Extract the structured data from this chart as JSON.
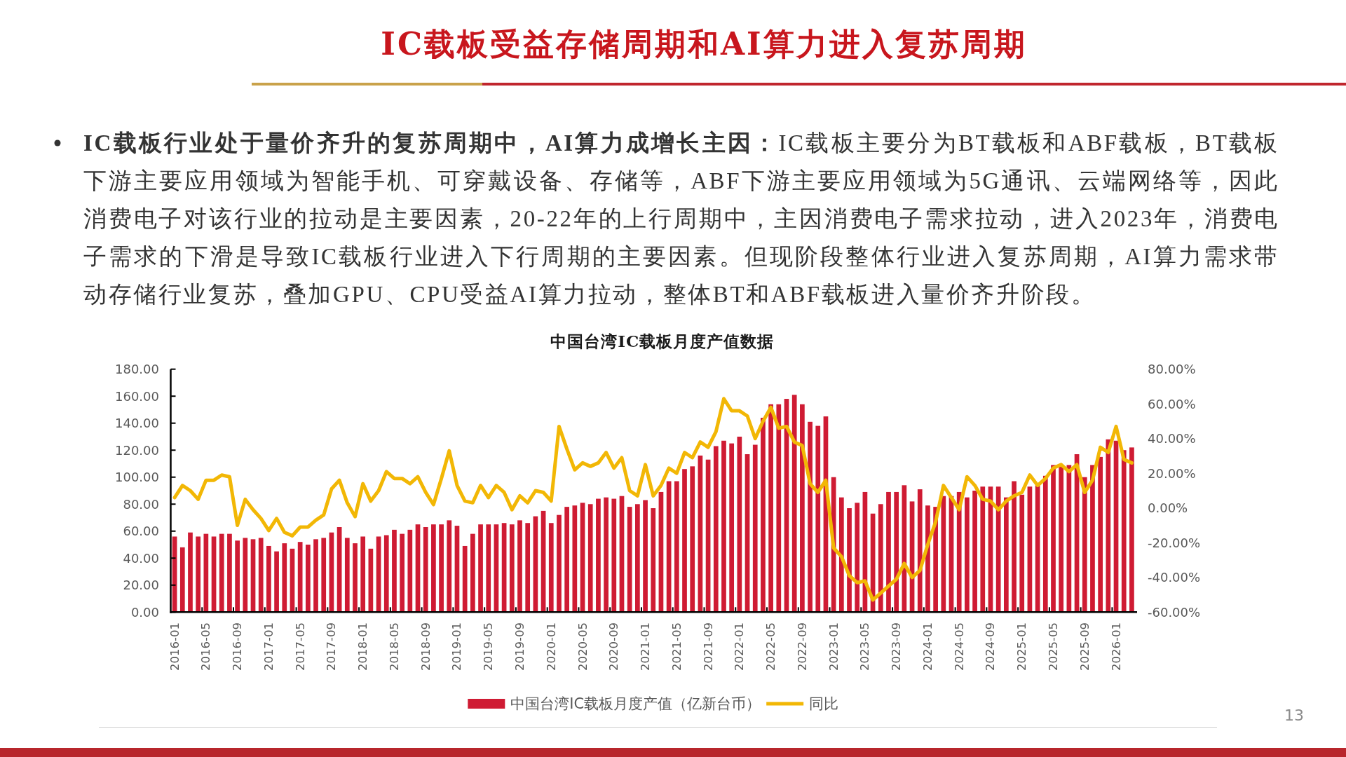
{
  "chart_data": {
    "type": "bar",
    "title": "IC载板受益存储周期和AI算力进入复苏周期",
    "subtitle": "中国台湾IC载板月度产值数据",
    "annotations": [
      "IC载板行业处于量价齐升的复苏周期中，AI算力成增长主因：",
      "IC载板主要分为BT载板和ABF载板，BT载板下游主要应用领域为智能手机、可穿戴设备、存储等，ABF下游主要应用领域为5G通讯、云端网络等，因此消费电子对该行业的拉动是主要因素，20-22年的上行周期中，主因消费电子需求拉动，进入2023年，消费电子需求的下滑是导致IC载板行业进入下行周期的主要因素。但现阶段整体行业进入复苏周期，AI算力需求带动存储行业复苏，叠加GPU、CPU受益AI算力拉动，整体BT和ABF载板进入量价齐升阶段。",
      "13"
    ],
    "categories": [
      "2016-01",
      null,
      null,
      null,
      "2016-05",
      null,
      null,
      null,
      "2016-09",
      null,
      null,
      null,
      "2017-01",
      null,
      null,
      null,
      "2017-05",
      null,
      null,
      null,
      "2017-09",
      null,
      null,
      null,
      "2018-01",
      null,
      null,
      null,
      "2018-05",
      null,
      null,
      null,
      "2018-09",
      null,
      null,
      null,
      "2019-01",
      null,
      null,
      null,
      "2019-05",
      null,
      null,
      null,
      "2019-09",
      null,
      null,
      null,
      "2020-01",
      null,
      null,
      null,
      "2020-05",
      null,
      null,
      null,
      "2020-09",
      null,
      null,
      null,
      "2021-01",
      null,
      null,
      null,
      "2021-05",
      null,
      null,
      null,
      "2021-09",
      null,
      null,
      null,
      "2022-01",
      null,
      null,
      null,
      "2022-05",
      null,
      null,
      null,
      "2022-09",
      null,
      null,
      null,
      "2023-01",
      null,
      null,
      null,
      "2023-05",
      null,
      null,
      null,
      "2023-09",
      null,
      null,
      null,
      "2024-01",
      null,
      null,
      null,
      "2024-05",
      null,
      null,
      null,
      "2024-09",
      null,
      null,
      null,
      "2025-01",
      null,
      null,
      null,
      "2025-05",
      null,
      null,
      null,
      "2025-09",
      null,
      null,
      null,
      "2026-01",
      null,
      null
    ],
    "series": [
      {
        "name": "中国台湾IC载板月度产值（亿新台币）",
        "color": "#cf1b33",
        "values": [
          56,
          48,
          59,
          56,
          58,
          56,
          58,
          58,
          53,
          55,
          54,
          55,
          49,
          45,
          51,
          47,
          52,
          50,
          54,
          55,
          59,
          63,
          55,
          51,
          56,
          47,
          56,
          57,
          61,
          58,
          61,
          65,
          63,
          65,
          65,
          68,
          64,
          49,
          58,
          65,
          65,
          65,
          66,
          65,
          68,
          66,
          71,
          75,
          66,
          72,
          78,
          79,
          81,
          80,
          84,
          85,
          84,
          86,
          78,
          80,
          83,
          77,
          89,
          97,
          97,
          106,
          108,
          116,
          113,
          123,
          127,
          125,
          130,
          117,
          124,
          144,
          154,
          154,
          158,
          161,
          154,
          141,
          138,
          145,
          100,
          85,
          77,
          81,
          89,
          73,
          80,
          89,
          89,
          94,
          82,
          91,
          79,
          78,
          86,
          86,
          89,
          85,
          90,
          93,
          93,
          93,
          85,
          97,
          87,
          93,
          94,
          101,
          109,
          109,
          109,
          117,
          100,
          109,
          115,
          128,
          127,
          120,
          122
        ]
      },
      {
        "name": "同比",
        "type": "line",
        "axis": "y2",
        "color": "#f2b705",
        "values": [
          6,
          13,
          10,
          5,
          16,
          16,
          19,
          18,
          -10,
          5,
          -1,
          -6,
          -13,
          -6,
          -14,
          -16,
          -11,
          -11,
          -7,
          -4,
          11,
          16,
          3,
          -5,
          14,
          4,
          10,
          21,
          17,
          17,
          14,
          18,
          9,
          2,
          17,
          33,
          13,
          4,
          3,
          13,
          6,
          13,
          9,
          -1,
          7,
          3,
          10,
          9,
          4,
          47,
          34,
          22,
          26,
          24,
          26,
          32,
          23,
          29,
          10,
          7,
          25,
          7,
          13,
          23,
          20,
          32,
          29,
          38,
          35,
          44,
          63,
          56,
          56,
          53,
          40,
          50,
          58,
          46,
          47,
          38,
          36,
          14,
          9,
          16,
          -23,
          -28,
          -39,
          -43,
          -42,
          -53,
          -49,
          -45,
          -41,
          -32,
          -40,
          -36,
          -21,
          -8,
          13,
          6,
          -1,
          18,
          13,
          5,
          4,
          -1,
          4,
          7,
          9,
          19,
          13,
          17,
          23,
          25,
          21,
          25,
          9,
          16,
          35,
          32,
          47,
          28,
          26
        ]
      }
    ],
    "ylim": [
      0,
      180
    ],
    "yticks": [
      {
        "value": 0,
        "label": "0.00"
      },
      {
        "value": 20,
        "label": "20.00"
      },
      {
        "value": 40,
        "label": "40.00"
      },
      {
        "value": 60,
        "label": "60.00"
      },
      {
        "value": 80,
        "label": "80.00"
      },
      {
        "value": 100,
        "label": "100.00"
      },
      {
        "value": 120,
        "label": "120.00"
      },
      {
        "value": 140,
        "label": "140.00"
      },
      {
        "value": 160,
        "label": "160.00"
      },
      {
        "value": 180,
        "label": "180.00"
      }
    ],
    "y2lim": [
      -60,
      80
    ],
    "y2ticks": [
      {
        "value": -60,
        "label": "-60.00%"
      },
      {
        "value": -40,
        "label": "-40.00%"
      },
      {
        "value": -20,
        "label": "-20.00%"
      },
      {
        "value": 0,
        "label": "0.00%"
      },
      {
        "value": 20,
        "label": "20.00%"
      },
      {
        "value": 40,
        "label": "40.00%"
      },
      {
        "value": 60,
        "label": "60.00%"
      },
      {
        "value": 80,
        "label": "80.00%"
      }
    ],
    "legend": "bottom"
  }
}
